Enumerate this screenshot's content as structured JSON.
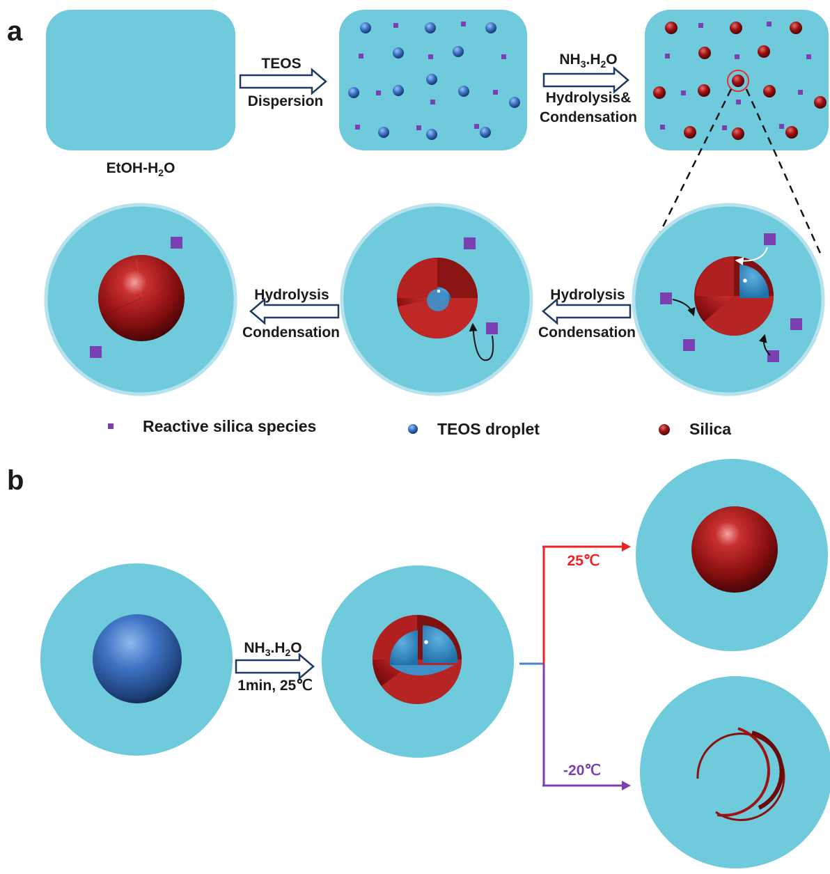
{
  "panel_a": {
    "label": "a",
    "solvent_label": "EtOH-H",
    "solvent_sub": "2",
    "solvent_tail": "O",
    "step1_top": "TEOS",
    "step1_bottom": "Dispersion",
    "step2_top_a": "NH",
    "step2_top_sub1": "3",
    "step2_top_b": ".H",
    "step2_top_sub2": "2",
    "step2_top_c": "O",
    "step2_mid": "Hydrolysis&",
    "step2_bottom": "Condensation",
    "step3_top": "Hydrolysis",
    "step3_bottom": "Condensation",
    "step4_top": "Hydrolysis",
    "step4_bottom": "Condensation"
  },
  "legend": {
    "reactive": "Reactive silica species",
    "teos": "TEOS droplet",
    "silica": "Silica"
  },
  "panel_b": {
    "label": "b",
    "reagent_a": "NH",
    "reagent_sub1": "3",
    "reagent_b": ".H",
    "reagent_sub2": "2",
    "reagent_c": "O",
    "condition": "1min, 25℃",
    "temp_high": "25℃",
    "temp_low": "-20℃"
  },
  "colors": {
    "solution": "#6fcadb",
    "teos": "#3a78c4",
    "silica": "#9c1414",
    "species": "#7a3fb0",
    "arrow_red": "#ee2222",
    "arrow_purple": "#7a3fb0",
    "connector": "#4a7fd6",
    "open_arrow": "#1f3864"
  }
}
